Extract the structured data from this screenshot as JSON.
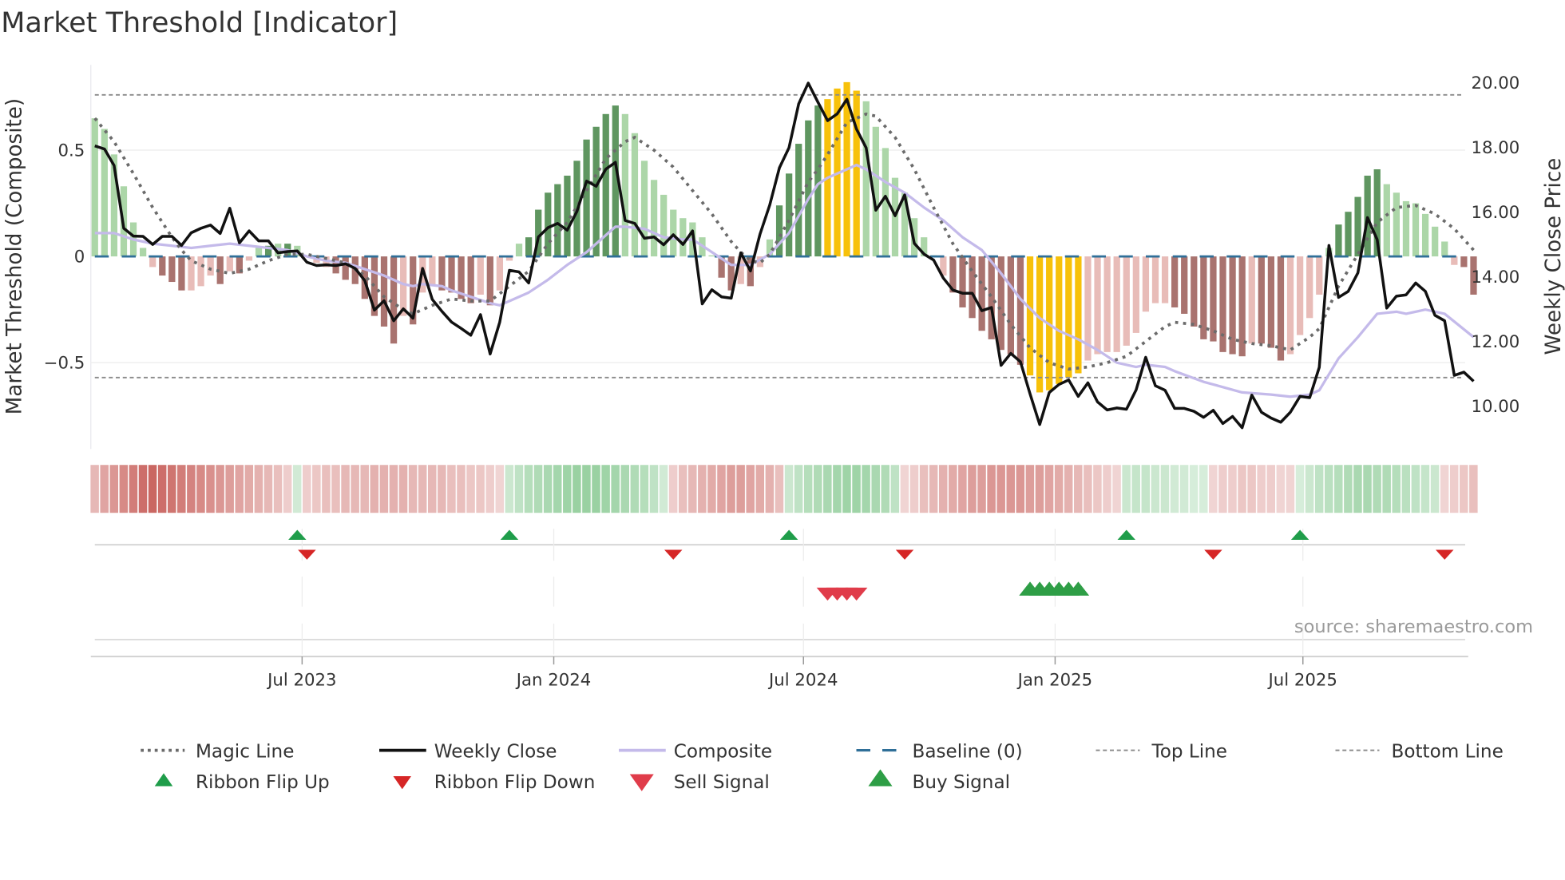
{
  "title": "Market Threshold [Indicator]",
  "source": "source: sharemaestro.com",
  "colors": {
    "light_green": "#acd6a8",
    "dark_green": "#5f9660",
    "light_red": "#e8bcb8",
    "dark_red": "#a9736f",
    "yellow": "#f7c10a",
    "close": "#111111",
    "composite": "#c4baea",
    "magic": "#6b6b6b",
    "baseline": "#2f6f98",
    "threshold": "#8a8a8a",
    "ribbon_pos": "#78c283",
    "ribbon_neg": "#c65a55",
    "flip_up": "#1f9d4a",
    "flip_down": "#d62626",
    "sell": "#e03c4a",
    "buy": "#2e9e46"
  },
  "chart_data": {
    "type": "bar+line",
    "title": "Market Threshold [Indicator]",
    "ylabel_left": "Market Threshold (Composite)",
    "ylabel_right": "Weekly Close Price",
    "ylim_left": [
      -0.9,
      0.9
    ],
    "ylim_right": [
      8.7,
      20.6
    ],
    "y_ticks_left": [
      {
        "v": 0.5,
        "label": "0.5"
      },
      {
        "v": 0,
        "label": "0"
      },
      {
        "v": -0.5,
        "label": "−0.5"
      }
    ],
    "y_ticks_right": [
      {
        "v": 20,
        "label": "20.00"
      },
      {
        "v": 18,
        "label": "18.00"
      },
      {
        "v": 16,
        "label": "16.00"
      },
      {
        "v": 14,
        "label": "14.00"
      },
      {
        "v": 12,
        "label": "12.00"
      },
      {
        "v": 10,
        "label": "10.00"
      }
    ],
    "x_unit": "week index",
    "x_ticks": [
      {
        "label": "Jul 2023",
        "week": 21.5
      },
      {
        "label": "Jan 2024",
        "week": 47.6
      },
      {
        "label": "Jul 2024",
        "week": 73.5
      },
      {
        "label": "Jan 2025",
        "week": 99.6
      },
      {
        "label": "Jul 2025",
        "week": 125.3
      }
    ],
    "top_line": 0.76,
    "bottom_line": -0.57,
    "baseline": 0,
    "composite_bars": [
      0.65,
      0.6,
      0.48,
      0.33,
      0.16,
      0.04,
      -0.05,
      -0.09,
      -0.12,
      -0.16,
      -0.16,
      -0.14,
      -0.09,
      -0.13,
      -0.07,
      -0.08,
      -0.02,
      0.04,
      0.05,
      0.06,
      0.06,
      0.05,
      -0.005,
      -0.03,
      -0.05,
      -0.08,
      -0.11,
      -0.13,
      -0.2,
      -0.28,
      -0.33,
      -0.41,
      -0.28,
      -0.32,
      -0.17,
      -0.14,
      -0.16,
      -0.17,
      -0.2,
      -0.22,
      -0.18,
      -0.23,
      -0.16,
      -0.02,
      0.06,
      0.09,
      0.22,
      0.3,
      0.34,
      0.38,
      0.45,
      0.55,
      0.61,
      0.67,
      0.71,
      0.67,
      0.58,
      0.45,
      0.36,
      0.29,
      0.22,
      0.18,
      0.16,
      0.09,
      0.005,
      -0.1,
      -0.16,
      -0.13,
      -0.14,
      -0.05,
      0.08,
      0.24,
      0.39,
      0.53,
      0.64,
      0.71,
      0.74,
      0.79,
      0.82,
      0.78,
      0.73,
      0.61,
      0.51,
      0.37,
      0.3,
      0.18,
      0.09,
      0.005,
      -0.09,
      -0.17,
      -0.24,
      -0.29,
      -0.35,
      -0.39,
      -0.44,
      -0.46,
      -0.51,
      -0.56,
      -0.64,
      -0.63,
      -0.6,
      -0.57,
      -0.55,
      -0.49,
      -0.46,
      -0.45,
      -0.45,
      -0.42,
      -0.36,
      -0.26,
      -0.22,
      -0.22,
      -0.24,
      -0.27,
      -0.33,
      -0.39,
      -0.4,
      -0.45,
      -0.46,
      -0.47,
      -0.41,
      -0.41,
      -0.43,
      -0.49,
      -0.46,
      -0.37,
      -0.29,
      -0.18,
      0.04,
      0.15,
      0.21,
      0.28,
      0.38,
      0.41,
      0.34,
      0.3,
      0.26,
      0.25,
      0.2,
      0.14,
      0.07,
      -0.04,
      -0.05,
      -0.18
    ],
    "bar_color_codes": "LLLLLLrRRRrrrRrRrLDLDLrrrRRRRRRRrRrrRRRRrRrrLDDDDDDDDDDLLLLLLLLLLRRrRrLDDDDDYYYYLLLLLLLLrRRRRRRRRYYYYYYrrrrrrrrrRRRRRRRRrRRRrrrrLDDDDDLLLLLLLrRR",
    "bar_color_legend": {
      "L": "light_green",
      "D": "dark_green",
      "r": "light_red",
      "R": "dark_red",
      "Y": "yellow"
    },
    "weekly_close": [
      18.05,
      17.95,
      17.44,
      15.5,
      15.26,
      15.25,
      15.0,
      15.25,
      15.25,
      14.97,
      15.36,
      15.5,
      15.6,
      15.34,
      16.12,
      15.05,
      15.42,
      15.11,
      15.11,
      14.74,
      14.78,
      14.8,
      14.45,
      14.35,
      14.37,
      14.35,
      14.4,
      14.26,
      13.88,
      12.97,
      13.26,
      12.64,
      13.01,
      12.72,
      14.26,
      13.3,
      12.93,
      12.6,
      12.4,
      12.19,
      12.83,
      11.61,
      12.6,
      14.2,
      14.15,
      13.81,
      15.23,
      15.52,
      15.65,
      15.44,
      16.02,
      16.96,
      16.8,
      17.33,
      17.54,
      15.74,
      15.65,
      15.19,
      15.23,
      14.99,
      15.3,
      15.0,
      15.42,
      13.16,
      13.6,
      13.38,
      13.34,
      14.74,
      14.18,
      15.32,
      16.22,
      17.37,
      17.99,
      19.35,
      19.99,
      19.4,
      18.83,
      19.04,
      19.49,
      18.57,
      17.99,
      16.06,
      16.49,
      15.89,
      16.53,
      15.03,
      14.7,
      14.52,
      13.96,
      13.59,
      13.49,
      13.49,
      12.95,
      13.05,
      11.26,
      11.63,
      11.37,
      10.38,
      9.43,
      10.42,
      10.67,
      10.81,
      10.3,
      10.72,
      10.13,
      9.88,
      9.94,
      9.9,
      10.5,
      11.51,
      10.63,
      10.49,
      9.93,
      9.93,
      9.84,
      9.65,
      9.87,
      9.46,
      9.68,
      9.33,
      10.34,
      9.81,
      9.63,
      9.5,
      9.81,
      10.3,
      10.26,
      11.2,
      14.97,
      13.36,
      13.55,
      14.12,
      15.83,
      15.15,
      13.03,
      13.4,
      13.44,
      13.81,
      13.55,
      12.81,
      12.64,
      10.95,
      11.05,
      10.77
    ],
    "composite_line": [
      [
        0,
        0.11
      ],
      [
        2,
        0.11
      ],
      [
        4,
        0.08
      ],
      [
        6,
        0.06
      ],
      [
        8,
        0.05
      ],
      [
        10,
        0.04
      ],
      [
        12,
        0.05
      ],
      [
        14,
        0.06
      ],
      [
        16,
        0.05
      ],
      [
        18,
        0.04
      ],
      [
        20,
        0.03
      ],
      [
        22,
        0.0
      ],
      [
        24,
        -0.02
      ],
      [
        26,
        -0.03
      ],
      [
        28,
        -0.06
      ],
      [
        30,
        -0.09
      ],
      [
        32,
        -0.13
      ],
      [
        33,
        -0.14
      ],
      [
        34,
        -0.13
      ],
      [
        36,
        -0.14
      ],
      [
        37,
        -0.16
      ],
      [
        39,
        -0.19
      ],
      [
        41,
        -0.22
      ],
      [
        42,
        -0.23
      ],
      [
        43,
        -0.21
      ],
      [
        45,
        -0.17
      ],
      [
        47,
        -0.11
      ],
      [
        49,
        -0.04
      ],
      [
        51,
        0.02
      ],
      [
        53,
        0.1
      ],
      [
        54,
        0.14
      ],
      [
        55,
        0.14
      ],
      [
        57,
        0.13
      ],
      [
        59,
        0.09
      ],
      [
        61,
        0.08
      ],
      [
        62,
        0.08
      ],
      [
        63,
        0.05
      ],
      [
        65,
        -0.01
      ],
      [
        66,
        -0.04
      ],
      [
        68,
        -0.04
      ],
      [
        70,
        0.01
      ],
      [
        72,
        0.11
      ],
      [
        74,
        0.27
      ],
      [
        75,
        0.34
      ],
      [
        76,
        0.37
      ],
      [
        78,
        0.41
      ],
      [
        79,
        0.43
      ],
      [
        80,
        0.41
      ],
      [
        82,
        0.35
      ],
      [
        84,
        0.3
      ],
      [
        86,
        0.23
      ],
      [
        88,
        0.17
      ],
      [
        90,
        0.09
      ],
      [
        92,
        0.03
      ],
      [
        94,
        -0.08
      ],
      [
        96,
        -0.2
      ],
      [
        98,
        -0.29
      ],
      [
        100,
        -0.35
      ],
      [
        102,
        -0.39
      ],
      [
        104,
        -0.44
      ],
      [
        106,
        -0.5
      ],
      [
        108,
        -0.52
      ],
      [
        109,
        -0.51
      ],
      [
        111,
        -0.52
      ],
      [
        112,
        -0.54
      ],
      [
        115,
        -0.59
      ],
      [
        119,
        -0.64
      ],
      [
        122,
        -0.65
      ],
      [
        124,
        -0.66
      ],
      [
        126,
        -0.65
      ],
      [
        127,
        -0.63
      ],
      [
        129,
        -0.48
      ],
      [
        131,
        -0.38
      ],
      [
        133,
        -0.27
      ],
      [
        135,
        -0.26
      ],
      [
        136,
        -0.27
      ],
      [
        138,
        -0.25
      ],
      [
        140,
        -0.27
      ],
      [
        143,
        -0.38
      ]
    ],
    "magic_line": [
      [
        0,
        0.65
      ],
      [
        2,
        0.54
      ],
      [
        4,
        0.39
      ],
      [
        6,
        0.23
      ],
      [
        8,
        0.09
      ],
      [
        9,
        0.03
      ],
      [
        10,
        -0.02
      ],
      [
        12,
        -0.06
      ],
      [
        14,
        -0.08
      ],
      [
        16,
        -0.06
      ],
      [
        18,
        -0.02
      ],
      [
        20,
        0.01
      ],
      [
        22,
        0.01
      ],
      [
        24,
        -0.01
      ],
      [
        26,
        -0.03
      ],
      [
        28,
        -0.09
      ],
      [
        30,
        -0.19
      ],
      [
        32,
        -0.25
      ],
      [
        33,
        -0.27
      ],
      [
        35,
        -0.23
      ],
      [
        37,
        -0.2
      ],
      [
        39,
        -0.21
      ],
      [
        41,
        -0.21
      ],
      [
        43,
        -0.14
      ],
      [
        45,
        -0.07
      ],
      [
        47,
        0.06
      ],
      [
        49,
        0.16
      ],
      [
        51,
        0.31
      ],
      [
        53,
        0.46
      ],
      [
        55,
        0.54
      ],
      [
        56,
        0.56
      ],
      [
        58,
        0.5
      ],
      [
        60,
        0.42
      ],
      [
        62,
        0.31
      ],
      [
        64,
        0.2
      ],
      [
        66,
        0.07
      ],
      [
        67,
        0.02
      ],
      [
        68,
        -0.02
      ],
      [
        69,
        -0.03
      ],
      [
        70,
        0.01
      ],
      [
        72,
        0.17
      ],
      [
        74,
        0.35
      ],
      [
        75,
        0.41
      ],
      [
        76,
        0.48
      ],
      [
        78,
        0.63
      ],
      [
        80,
        0.67
      ],
      [
        81,
        0.66
      ],
      [
        83,
        0.56
      ],
      [
        85,
        0.41
      ],
      [
        87,
        0.23
      ],
      [
        89,
        0.06
      ],
      [
        91,
        -0.07
      ],
      [
        93,
        -0.19
      ],
      [
        95,
        -0.32
      ],
      [
        97,
        -0.43
      ],
      [
        99,
        -0.5
      ],
      [
        101,
        -0.53
      ],
      [
        103,
        -0.52
      ],
      [
        105,
        -0.5
      ],
      [
        107,
        -0.47
      ],
      [
        109,
        -0.4
      ],
      [
        111,
        -0.33
      ],
      [
        112,
        -0.31
      ],
      [
        114,
        -0.32
      ],
      [
        116,
        -0.35
      ],
      [
        118,
        -0.39
      ],
      [
        120,
        -0.41
      ],
      [
        122,
        -0.42
      ],
      [
        124,
        -0.44
      ],
      [
        126,
        -0.38
      ],
      [
        127,
        -0.34
      ],
      [
        128,
        -0.24
      ],
      [
        129,
        -0.14
      ],
      [
        131,
        0.01
      ],
      [
        133,
        0.16
      ],
      [
        135,
        0.23
      ],
      [
        137,
        0.24
      ],
      [
        139,
        0.2
      ],
      [
        141,
        0.13
      ],
      [
        143,
        0.03
      ]
    ],
    "ribbon": [
      -0.3,
      -0.45,
      -0.55,
      -0.65,
      -0.75,
      -0.85,
      -0.9,
      -0.85,
      -0.8,
      -0.75,
      -0.7,
      -0.65,
      -0.6,
      -0.55,
      -0.5,
      -0.45,
      -0.4,
      -0.35,
      -0.3,
      -0.25,
      -0.15,
      0.2,
      -0.15,
      -0.2,
      -0.25,
      -0.25,
      -0.3,
      -0.3,
      -0.3,
      -0.35,
      -0.35,
      -0.35,
      -0.35,
      -0.3,
      -0.3,
      -0.3,
      -0.3,
      -0.25,
      -0.25,
      -0.2,
      -0.2,
      -0.15,
      -0.1,
      0.25,
      0.35,
      0.45,
      0.5,
      0.55,
      0.6,
      0.65,
      0.7,
      0.7,
      0.7,
      0.65,
      0.6,
      0.55,
      0.5,
      0.45,
      0.35,
      0.2,
      -0.15,
      -0.25,
      -0.3,
      -0.35,
      -0.4,
      -0.45,
      -0.5,
      -0.5,
      -0.45,
      -0.4,
      -0.35,
      -0.25,
      0.25,
      0.35,
      0.45,
      0.5,
      0.55,
      0.6,
      0.65,
      0.65,
      0.6,
      0.55,
      0.5,
      0.35,
      -0.1,
      -0.15,
      -0.25,
      -0.3,
      -0.35,
      -0.4,
      -0.45,
      -0.5,
      -0.5,
      -0.55,
      -0.55,
      -0.55,
      -0.55,
      -0.5,
      -0.5,
      -0.45,
      -0.4,
      -0.35,
      -0.3,
      -0.25,
      -0.2,
      -0.15,
      -0.1,
      0.25,
      0.3,
      0.3,
      0.25,
      0.25,
      0.2,
      0.2,
      0.15,
      0.15,
      -0.1,
      -0.15,
      -0.15,
      -0.2,
      -0.2,
      -0.15,
      -0.15,
      -0.1,
      -0.1,
      0.15,
      0.25,
      0.35,
      0.4,
      0.45,
      0.5,
      0.55,
      0.55,
      0.5,
      0.5,
      0.45,
      0.4,
      0.35,
      0.3,
      0.25,
      -0.1,
      -0.15,
      -0.2,
      -0.25
    ],
    "ribbon_flip_up": [
      21,
      43,
      72,
      107,
      125
    ],
    "ribbon_flip_down": [
      22,
      60,
      84,
      116,
      140
    ],
    "sell_signals": [
      76,
      77,
      78,
      79
    ],
    "buy_signals": [
      97,
      98,
      99,
      100,
      101,
      102
    ]
  },
  "legend": {
    "row1": [
      {
        "key": "magic",
        "label": "Magic Line"
      },
      {
        "key": "close",
        "label": "Weekly Close"
      },
      {
        "key": "composite",
        "label": "Composite"
      },
      {
        "key": "baseline",
        "label": "Baseline (0)"
      },
      {
        "key": "top",
        "label": "Top Line"
      },
      {
        "key": "bottom",
        "label": "Bottom Line"
      }
    ],
    "row2": [
      {
        "key": "flip_up",
        "label": "Ribbon Flip Up"
      },
      {
        "key": "flip_down",
        "label": "Ribbon Flip Down"
      },
      {
        "key": "sell",
        "label": "Sell Signal"
      },
      {
        "key": "buy",
        "label": "Buy Signal"
      }
    ]
  }
}
